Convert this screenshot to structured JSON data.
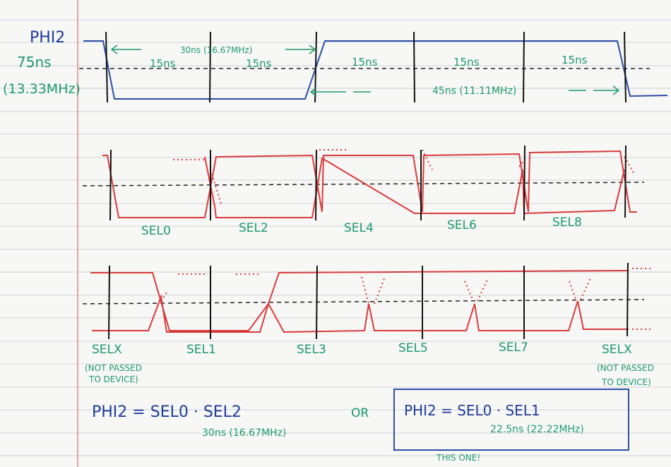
{
  "phi2": {
    "label": "PHI2",
    "period": "75ns",
    "frequency": "(13.33MHz)",
    "span_first": "30ns (16.67MHz)",
    "span_second": "45ns (11.11MHz)",
    "half_periods": [
      "15ns",
      "15ns",
      "15ns",
      "15ns",
      "15ns"
    ]
  },
  "even_selects": [
    "SEL0",
    "SEL2",
    "SEL4",
    "SEL6",
    "SEL8"
  ],
  "odd_selects": [
    "SELX",
    "SEL1",
    "SEL3",
    "SEL5",
    "SEL7",
    "SELX"
  ],
  "notes": {
    "left": [
      "(NOT PASSED",
      "TO DEVICE)"
    ],
    "right": [
      "(NOT PASSED",
      "TO DEVICE)"
    ]
  },
  "equations": {
    "first": "PHI2 = SEL0 · SEL2",
    "first_timing": "30ns (16.67MHz)",
    "connector": "OR",
    "second": "PHI2 = SEL0 · SEL1",
    "second_timing": "22.5ns (22.22MHz)",
    "choice": "THIS ONE!"
  }
}
